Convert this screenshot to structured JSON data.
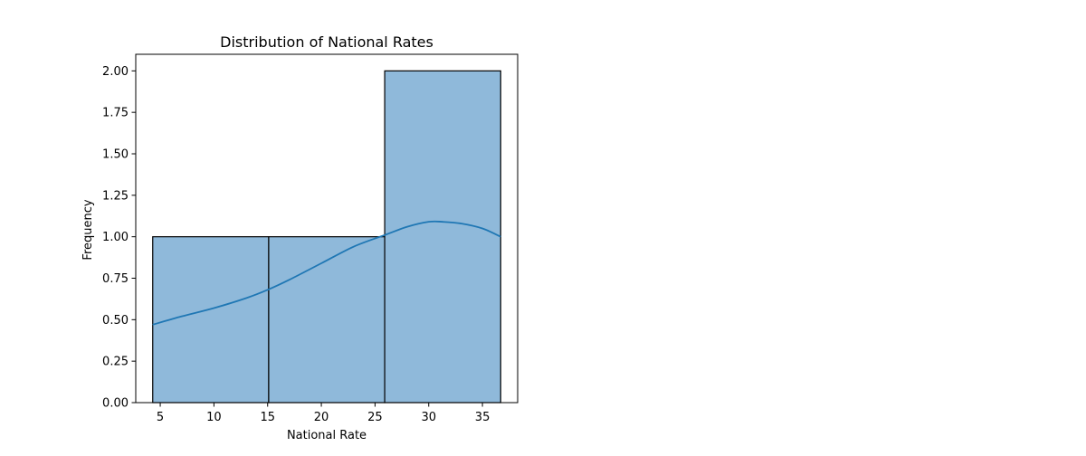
{
  "chart_data": {
    "type": "bar",
    "title": "Distribution of National Rates",
    "xlabel": "National Rate",
    "ylabel": "Frequency",
    "xlim": [
      2.72,
      38.28
    ],
    "ylim": [
      0,
      2.1
    ],
    "grid": false,
    "legend": "none",
    "bins": [
      {
        "x0": 4.3,
        "x1": 15.1,
        "count": 1
      },
      {
        "x0": 15.1,
        "x1": 25.9,
        "count": 1
      },
      {
        "x0": 25.9,
        "x1": 36.7,
        "count": 2
      }
    ],
    "kde": {
      "x": [
        4.3,
        7.0,
        10.0,
        13.0,
        15.0,
        17.0,
        20.0,
        23.0,
        25.9,
        28.0,
        30.0,
        31.3,
        33.0,
        35.0,
        36.7
      ],
      "y": [
        0.47,
        0.52,
        0.57,
        0.63,
        0.68,
        0.74,
        0.84,
        0.94,
        1.01,
        1.06,
        1.09,
        1.09,
        1.08,
        1.05,
        1.0
      ]
    },
    "xticks": [
      5,
      10,
      15,
      20,
      25,
      30,
      35
    ],
    "xtick_labels": [
      "5",
      "10",
      "15",
      "20",
      "25",
      "30",
      "35"
    ],
    "yticks": [
      0,
      0.25,
      0.5,
      0.75,
      1.0,
      1.25,
      1.5,
      1.75,
      2.0
    ],
    "ytick_labels": [
      "0.00",
      "0.25",
      "0.50",
      "0.75",
      "1.00",
      "1.25",
      "1.50",
      "1.75",
      "2.00"
    ],
    "colors": {
      "bar_fill": "#8fb9da",
      "bar_edge": "#000000",
      "kde_line": "#1f77b4",
      "axes": "#000000"
    }
  }
}
